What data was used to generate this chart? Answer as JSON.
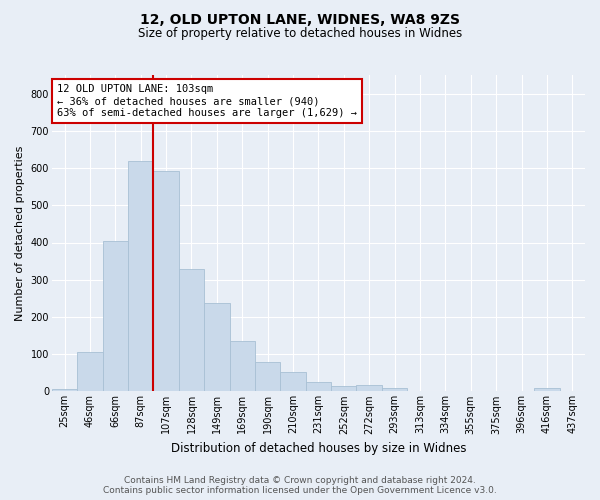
{
  "title1": "12, OLD UPTON LANE, WIDNES, WA8 9ZS",
  "title2": "Size of property relative to detached houses in Widnes",
  "xlabel": "Distribution of detached houses by size in Widnes",
  "ylabel": "Number of detached properties",
  "bar_labels": [
    "25sqm",
    "46sqm",
    "66sqm",
    "87sqm",
    "107sqm",
    "128sqm",
    "149sqm",
    "169sqm",
    "190sqm",
    "210sqm",
    "231sqm",
    "252sqm",
    "272sqm",
    "293sqm",
    "313sqm",
    "334sqm",
    "355sqm",
    "375sqm",
    "396sqm",
    "416sqm",
    "437sqm"
  ],
  "bar_values": [
    7,
    105,
    403,
    618,
    591,
    330,
    238,
    135,
    78,
    53,
    24,
    15,
    18,
    8,
    1,
    0,
    0,
    0,
    0,
    9,
    0
  ],
  "bar_color": "#c9d9ea",
  "bar_edgecolor": "#a8c0d4",
  "vline_x_idx": 3.5,
  "vline_color": "#cc0000",
  "annotation_text": "12 OLD UPTON LANE: 103sqm\n← 36% of detached houses are smaller (940)\n63% of semi-detached houses are larger (1,629) →",
  "annotation_box_edgecolor": "#cc0000",
  "annotation_box_facecolor": "#ffffff",
  "ylim": [
    0,
    850
  ],
  "yticks": [
    0,
    100,
    200,
    300,
    400,
    500,
    600,
    700,
    800
  ],
  "footer1": "Contains HM Land Registry data © Crown copyright and database right 2024.",
  "footer2": "Contains public sector information licensed under the Open Government Licence v3.0.",
  "background_color": "#e8eef6",
  "plot_background": "#e8eef6",
  "grid_color": "#ffffff",
  "title1_fontsize": 10,
  "title2_fontsize": 8.5,
  "ylabel_fontsize": 8,
  "xlabel_fontsize": 8.5,
  "tick_fontsize": 7,
  "footer_fontsize": 6.5
}
